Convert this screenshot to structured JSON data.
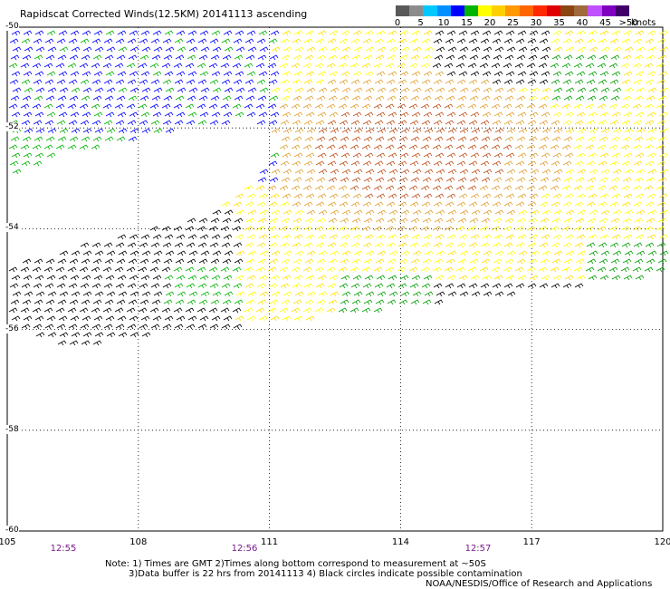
{
  "title": "Rapidscat Corrected Winds(12.5KM) 20141113 ascending",
  "legend": {
    "ticks": [
      "0",
      "5",
      "10",
      "15",
      "20",
      "25",
      "30",
      "35",
      "40",
      "45",
      ">50"
    ],
    "unit": "knots",
    "colors": [
      "#595959",
      "#8c8c8c",
      "#00c8ff",
      "#0090ff",
      "#0000ff",
      "#00b400",
      "#ffff00",
      "#ffd000",
      "#ff9900",
      "#ff6600",
      "#ff2a00",
      "#e00000",
      "#8b4513",
      "#a06a3c",
      "#c050ff",
      "#8000c0",
      "#40006a"
    ]
  },
  "axes": {
    "lon_labels": [
      "105",
      "108",
      "111",
      "114",
      "117",
      "120"
    ],
    "lat_labels": [
      "-50",
      "-52",
      "-54",
      "-56",
      "-58",
      "-60"
    ],
    "lon_range": [
      105,
      120
    ],
    "lat_range": [
      -50,
      -60
    ]
  },
  "times": [
    "12:55",
    "12:56",
    "12:57"
  ],
  "notes": {
    "line1": "Note: 1) Times are GMT 2)Times along bottom correspond to measurement at ~50S",
    "line2": "3)Data buffer is 22 hrs from 20141113 4) Black circles indicate possible contamination",
    "line3": "NOAA/NESDIS/Office of Research and Applications"
  },
  "chart_data": {
    "type": "wind-barb-map",
    "title": "Rapidscat Corrected Winds(12.5KM) 20141113 ascending",
    "xlabel": "",
    "ylabel": "",
    "xlim": [
      105,
      120
    ],
    "ylim": [
      -60,
      -50
    ],
    "x_ticks": [
      105,
      108,
      111,
      114,
      117,
      120
    ],
    "y_ticks": [
      -50,
      -52,
      -54,
      -56,
      -58,
      -60
    ],
    "legend_units": "knots",
    "legend_bins": [
      0,
      5,
      10,
      15,
      20,
      25,
      30,
      35,
      40,
      45,
      50
    ]
  }
}
